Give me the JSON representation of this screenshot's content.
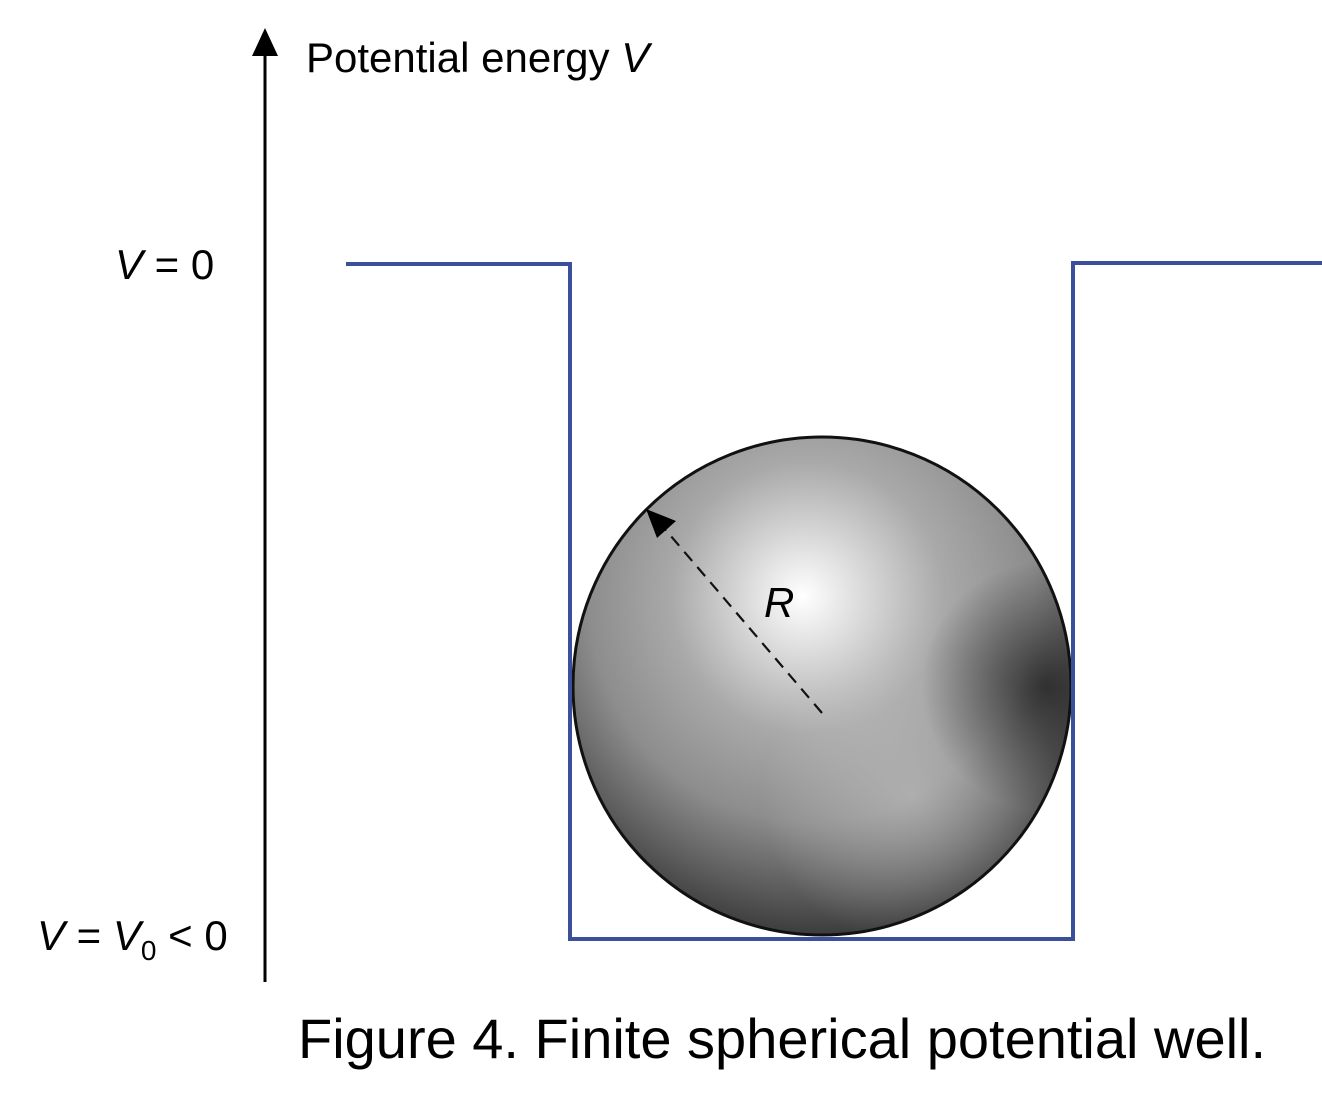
{
  "axis_label": {
    "prefix": "Potential energy ",
    "variable": "V"
  },
  "levels": {
    "top": {
      "variable": "V",
      "rest": " = 0"
    },
    "bottom": {
      "variable": "V",
      "eq": " = ",
      "v0_var": "V",
      "v0_sub": "0",
      "rest": " < 0"
    }
  },
  "radius_label": "R",
  "caption": "Figure 4. Finite spherical potential well.",
  "colors": {
    "well_line": "#3b4f9a",
    "axis": "#000000",
    "sphere_outline": "#111111"
  }
}
